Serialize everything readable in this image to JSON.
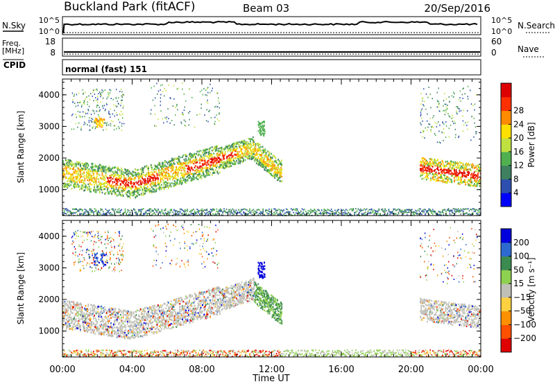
{
  "header": {
    "station": "Buckland Park (fitACF)",
    "beam": "Beam 03",
    "date": "20/Sep/2016"
  },
  "noise_panel": {
    "left_label": "N.Sky",
    "left_ticks": [
      "10^5",
      "10^0"
    ],
    "right_label": "N.Search",
    "right_ticks": [
      "10^5",
      "10^0"
    ]
  },
  "freq_panel": {
    "left_label_1": "Freq.",
    "left_label_2": "[MHz]",
    "left_ticks": [
      "18",
      "8"
    ],
    "right_label": "Nave",
    "right_ticks": [
      "60",
      "0"
    ]
  },
  "cpid_panel": {
    "label": "CPID",
    "text": "normal (fast) 151"
  },
  "chart_data": [
    {
      "type": "heatmap",
      "quantity": "Power",
      "ylabel": "Slant Range [km]",
      "y_ticks": [
        1000,
        2000,
        3000,
        4000
      ],
      "ylim": [
        180,
        4500
      ],
      "xlim": [
        0,
        24
      ],
      "colorbar_label": "Power [dB]",
      "colorbar_ticks": [
        "4",
        "8",
        "12",
        "16",
        "20",
        "24",
        "28"
      ],
      "colorbar_range": [
        0,
        32
      ],
      "colorbar_colors": [
        "#0000ff",
        "#2d4fb0",
        "#3e8060",
        "#50b050",
        "#c0e040",
        "#ffe000",
        "#ff8c00",
        "#ff3000",
        "#dd0000"
      ]
    },
    {
      "type": "heatmap",
      "quantity": "Velocity",
      "ylabel": "Slant Range [km]",
      "y_ticks": [
        1000,
        2000,
        3000,
        4000
      ],
      "ylim": [
        180,
        4500
      ],
      "xlim": [
        0,
        24
      ],
      "colorbar_label": "Velocity [m s⁻¹]",
      "colorbar_ticks": [
        "200",
        "100",
        "50",
        "15",
        "−15",
        "−50",
        "−100",
        "−200"
      ],
      "colorbar_colors": [
        "#0000dd",
        "#2d6ad0",
        "#3b8a50",
        "#8ed050",
        "#c0c0b8",
        "#ffd040",
        "#ff9000",
        "#ff5000",
        "#e00000"
      ]
    }
  ],
  "x_axis": {
    "ticks": [
      "00:00",
      "04:00",
      "08:00",
      "12:00",
      "16:00",
      "20:00",
      "00:00"
    ],
    "tick_hours": [
      0,
      4,
      8,
      12,
      16,
      20,
      24
    ],
    "label": "Time UT"
  }
}
